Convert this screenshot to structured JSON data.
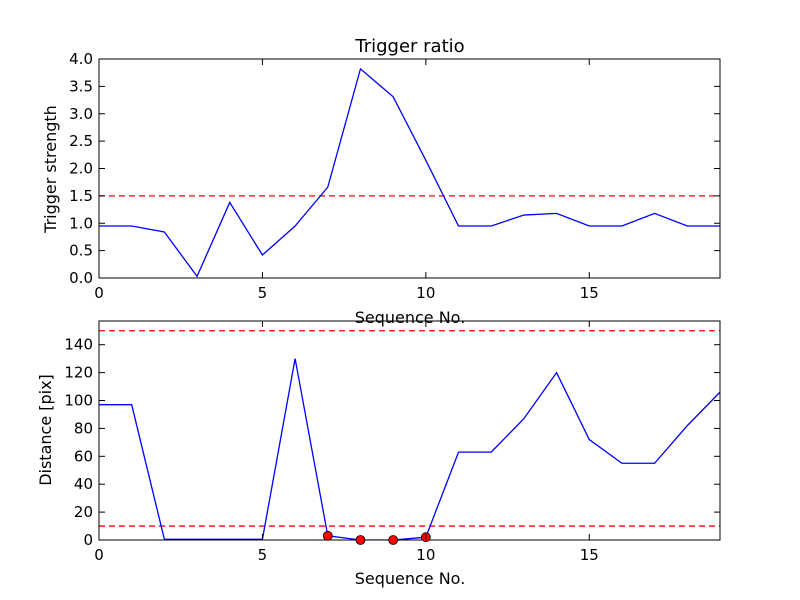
{
  "chart_data": [
    {
      "type": "line",
      "title": "Trigger ratio",
      "xlabel": "Sequence No.",
      "ylabel": "Trigger strength",
      "xlim": [
        0,
        19
      ],
      "ylim": [
        0,
        4.0
      ],
      "xticks": [
        "0",
        "5",
        "10",
        "15"
      ],
      "xtick_values": [
        0,
        5,
        10,
        15
      ],
      "yticks": [
        "0.0",
        "0.5",
        "1.0",
        "1.5",
        "2.0",
        "2.5",
        "3.0",
        "3.5",
        "4.0"
      ],
      "ytick_values": [
        0,
        0.5,
        1.0,
        1.5,
        2.0,
        2.5,
        3.0,
        3.5,
        4.0
      ],
      "grid": false,
      "series": [
        {
          "color": "#0000ff",
          "x": [
            0,
            1,
            2,
            3,
            4,
            5,
            6,
            7,
            8,
            9,
            10,
            11,
            12,
            13,
            14,
            15,
            16,
            17,
            18,
            19
          ],
          "values": [
            0.95,
            0.95,
            0.84,
            0.03,
            1.38,
            0.42,
            0.95,
            1.66,
            3.82,
            3.31,
            2.15,
            0.95,
            0.95,
            1.15,
            1.18,
            0.95,
            0.95,
            1.18,
            0.95,
            0.95
          ]
        }
      ],
      "thresholds": [
        {
          "value": 1.5,
          "color": "#ff0000",
          "style": "dashed"
        }
      ],
      "markers": []
    },
    {
      "type": "line",
      "title": "",
      "xlabel": "Sequence No.",
      "ylabel": "Distance [pix]",
      "xlim": [
        0,
        19
      ],
      "ylim": [
        0,
        157
      ],
      "xticks": [
        "0",
        "5",
        "10",
        "15"
      ],
      "xtick_values": [
        0,
        5,
        10,
        15
      ],
      "yticks": [
        "0",
        "20",
        "40",
        "60",
        "80",
        "100",
        "120",
        "140"
      ],
      "ytick_values": [
        0,
        20,
        40,
        60,
        80,
        100,
        120,
        140
      ],
      "grid": false,
      "series": [
        {
          "color": "#0000ff",
          "x": [
            0,
            1,
            2,
            3,
            4,
            5,
            6,
            7,
            8,
            9,
            10,
            11,
            12,
            13,
            14,
            15,
            16,
            17,
            18,
            19
          ],
          "values": [
            97,
            97,
            0.5,
            0.5,
            0.5,
            0.5,
            130,
            3,
            0,
            0,
            2,
            63,
            63,
            87,
            120,
            72,
            55,
            55,
            82,
            106
          ]
        }
      ],
      "thresholds": [
        {
          "value": 150,
          "color": "#ff0000",
          "style": "dashed"
        },
        {
          "value": 10,
          "color": "#ff0000",
          "style": "dashed"
        }
      ],
      "markers": [
        {
          "x": 7,
          "y": 3,
          "color": "#ff0000"
        },
        {
          "x": 8,
          "y": 0,
          "color": "#ff0000"
        },
        {
          "x": 9,
          "y": 0,
          "color": "#ff0000"
        },
        {
          "x": 10,
          "y": 2,
          "color": "#ff0000"
        }
      ]
    }
  ]
}
